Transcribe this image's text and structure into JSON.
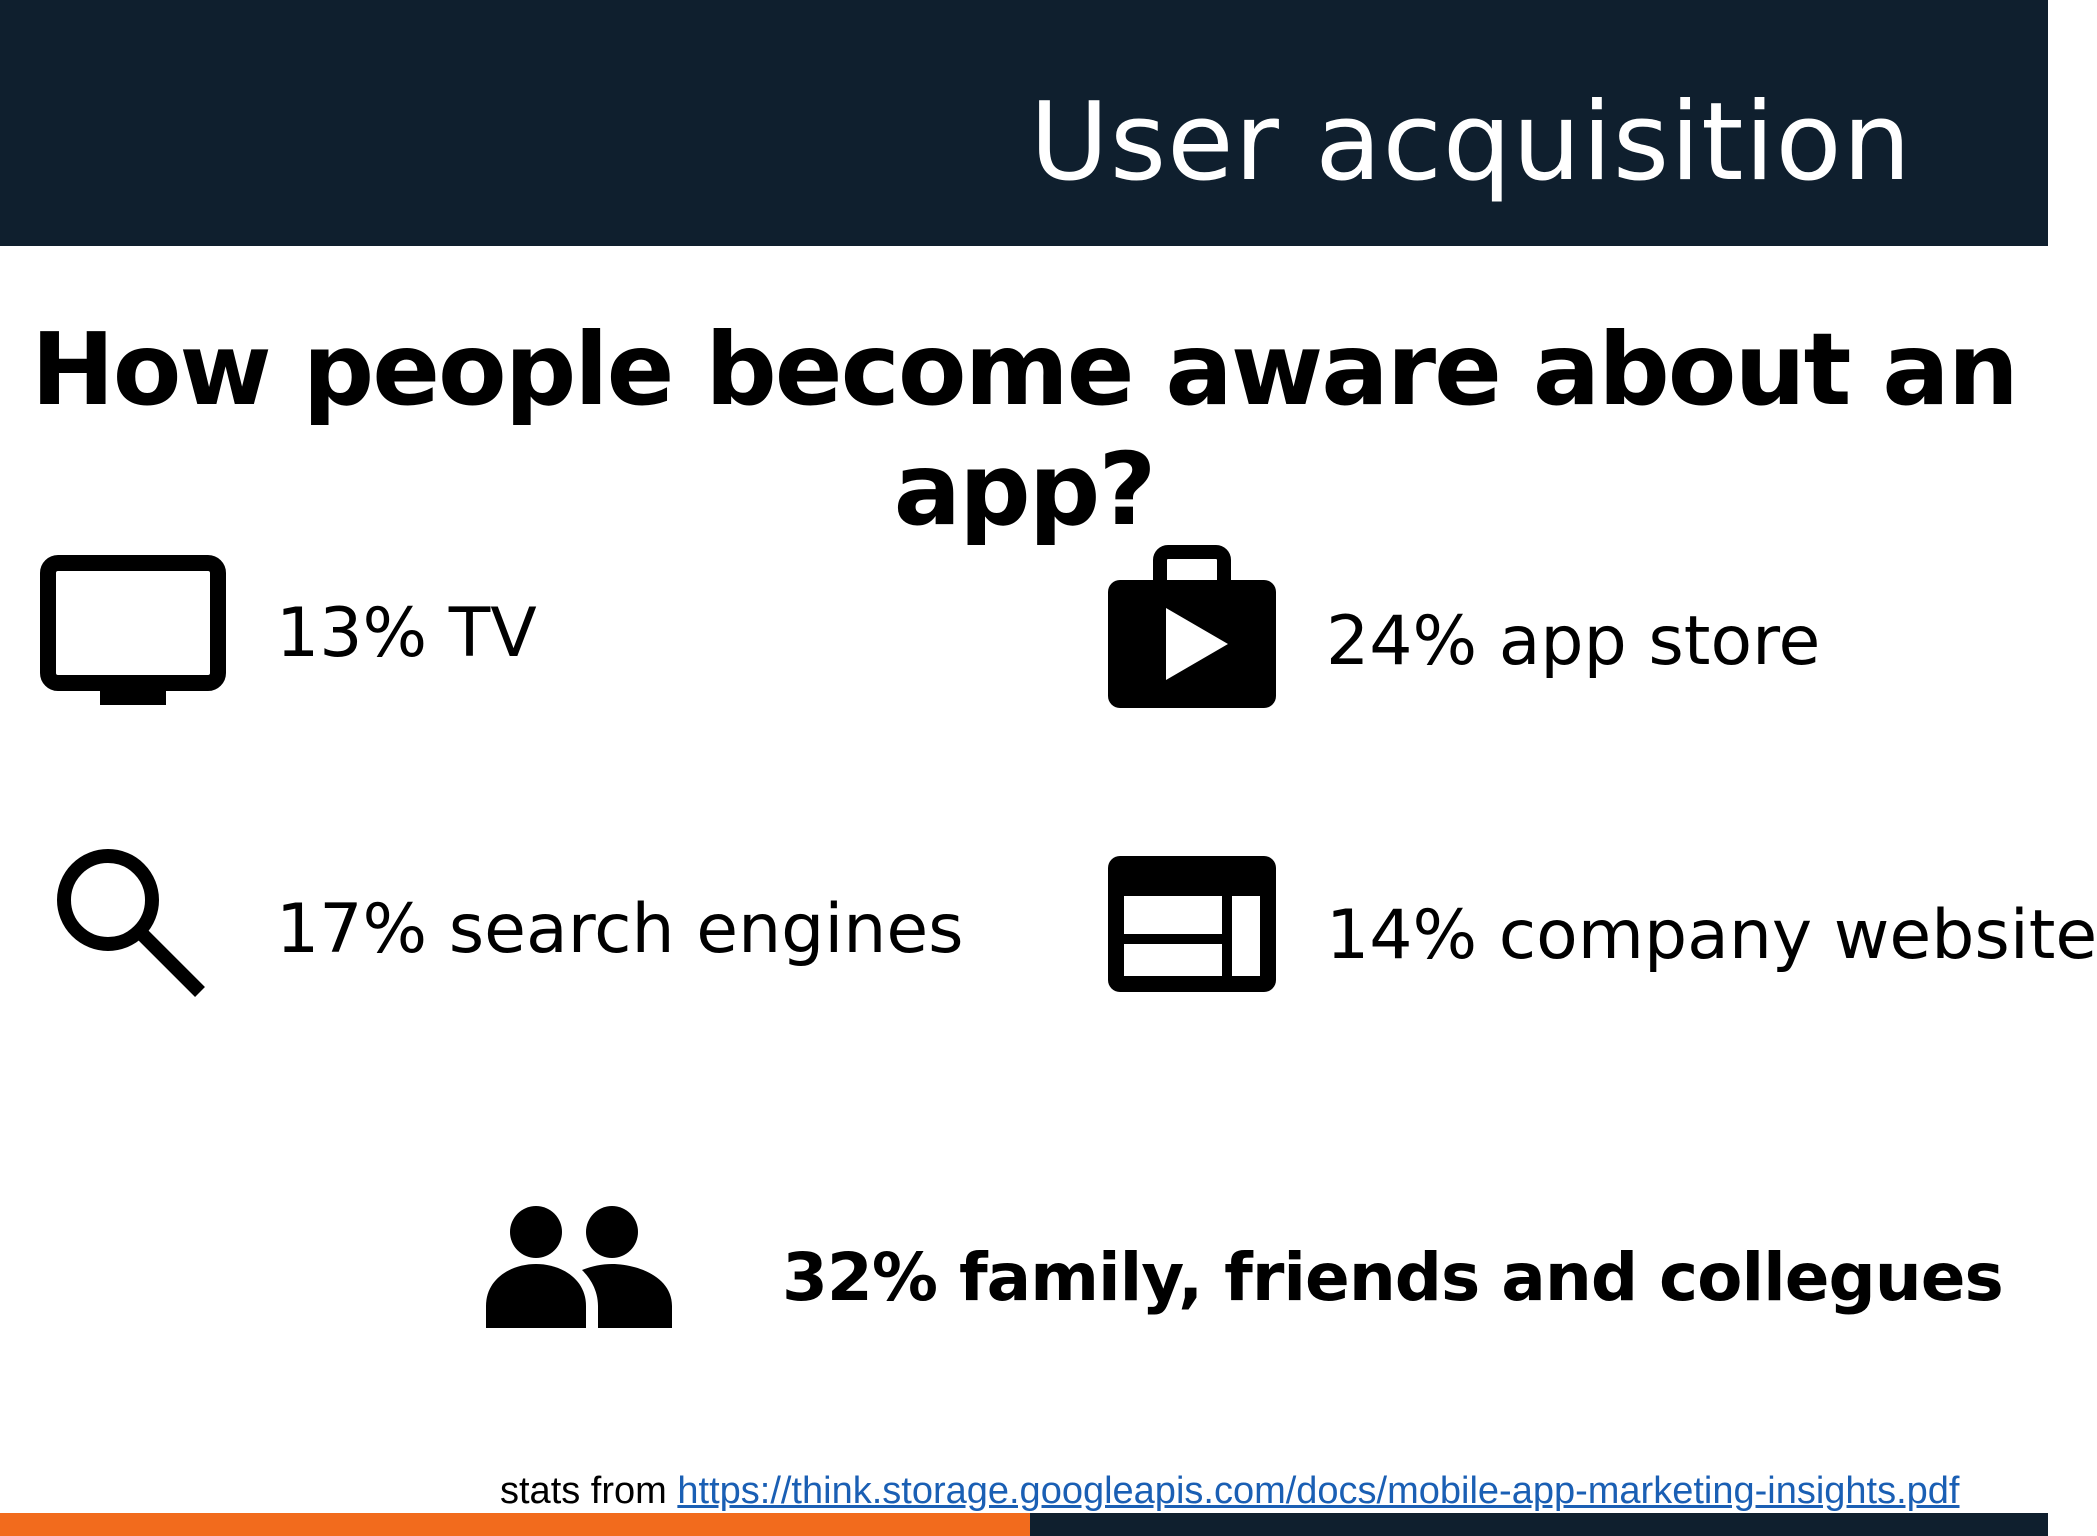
{
  "header": {
    "title": "User acquisition",
    "background": "#0f1f2e"
  },
  "question": "How people become aware about an app?",
  "stats": [
    {
      "icon": "tv-icon",
      "label": "13% TV",
      "percent": 13
    },
    {
      "icon": "app-store-icon",
      "label": "24% app store",
      "percent": 24
    },
    {
      "icon": "search-icon",
      "label": "17% search engines",
      "percent": 17
    },
    {
      "icon": "website-icon",
      "label": "14% company website",
      "percent": 14
    },
    {
      "icon": "people-icon",
      "label": "32% family, friends and collegues",
      "percent": 32
    }
  ],
  "source": {
    "prefix": "stats from ",
    "link_text": "https://think.storage.googleapis.com/docs/mobile-app-marketing-insights.pdf"
  },
  "colors": {
    "footer_left": "#f26b1d",
    "footer_right": "#0f1f2e",
    "link": "#1a5fb4"
  }
}
